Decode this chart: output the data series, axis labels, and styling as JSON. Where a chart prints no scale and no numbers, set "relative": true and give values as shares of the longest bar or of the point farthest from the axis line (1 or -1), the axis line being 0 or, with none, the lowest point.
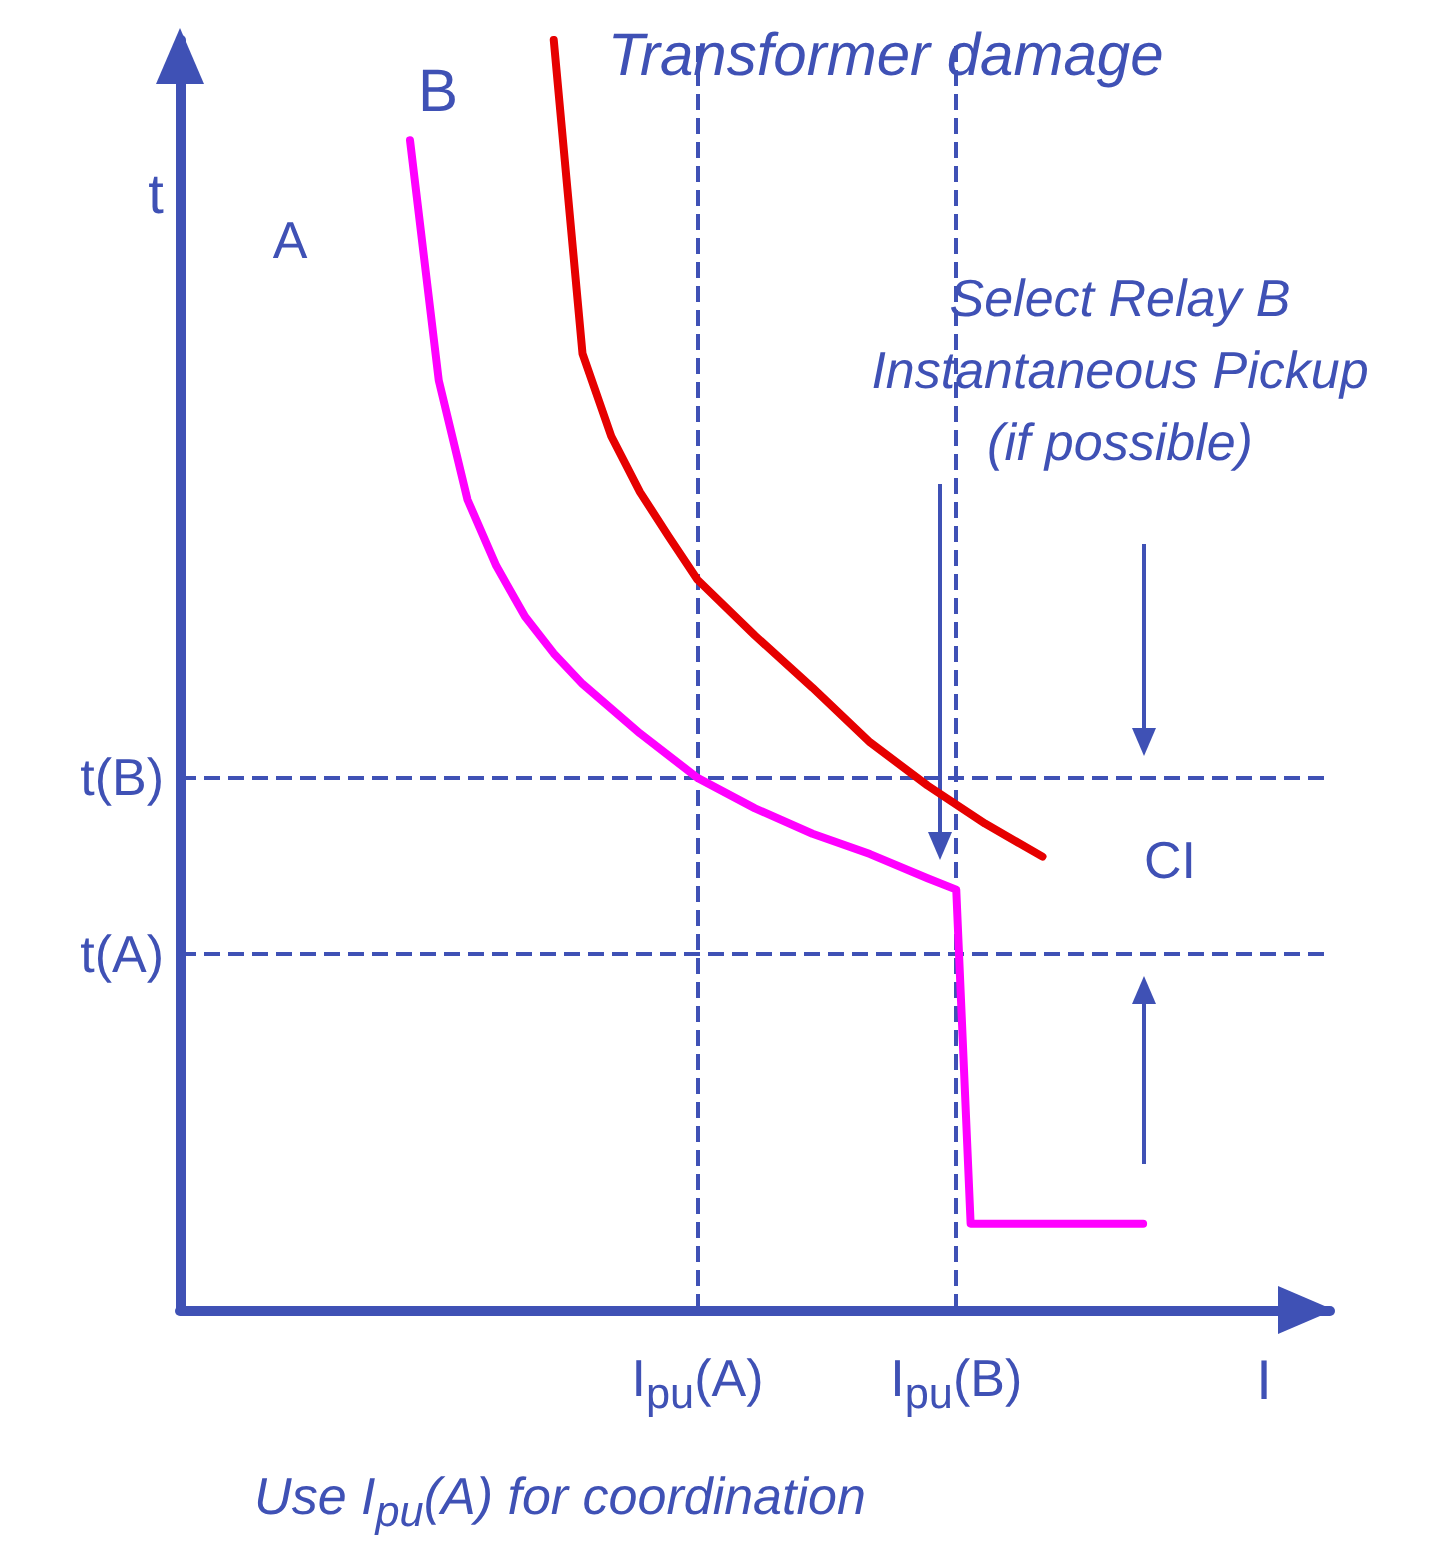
{
  "chart_data": {
    "type": "line",
    "relative": true,
    "xlabel": "I",
    "ylabel": "t",
    "line_style": "solid",
    "marker": "none",
    "grid": false,
    "legend": false,
    "categories": [
      null,
      null,
      null,
      null,
      null,
      null,
      null,
      null,
      null,
      null,
      null,
      null,
      null,
      null,
      null,
      null,
      null,
      null,
      null,
      null,
      null,
      null,
      null,
      null,
      null,
      null,
      null,
      null,
      null,
      null,
      null,
      null,
      null,
      null,
      null,
      null,
      "I$_{pu}$(A)",
      null,
      null,
      null,
      null,
      null,
      null,
      null,
      null,
      null,
      null,
      null,
      null,
      null,
      null,
      null,
      null,
      null,
      "I$_{pu}$(B)",
      null,
      null,
      null,
      null,
      null,
      null,
      null,
      null,
      null,
      null,
      null,
      null,
      null,
      null,
      null,
      null,
      null,
      null,
      null,
      null,
      null,
      null,
      null,
      null,
      null,
      null
    ],
    "series": [
      {
        "name": "Transformer damage",
        "color": "#e60000",
        "values": [
          null,
          null,
          null,
          null,
          null,
          null,
          null,
          null,
          null,
          null,
          null,
          null,
          null,
          null,
          null,
          null,
          null,
          null,
          null,
          null,
          null,
          null,
          null,
          null,
          null,
          null,
          1.0,
          null,
          0.753,
          null,
          0.688,
          null,
          0.644,
          null,
          0.609,
          null,
          0.575,
          null,
          null,
          null,
          0.531,
          null,
          null,
          null,
          0.49,
          null,
          null,
          null,
          0.447,
          null,
          null,
          null,
          0.413,
          null,
          null,
          null,
          0.383,
          null,
          null,
          null,
          0.357,
          null,
          null,
          null,
          null,
          null,
          null,
          null,
          null,
          null,
          null,
          null,
          null,
          null,
          null,
          null,
          null,
          null,
          null,
          null,
          null
        ]
      },
      {
        "name": "B",
        "color": "#ff00ff",
        "values": [
          null,
          null,
          null,
          null,
          null,
          null,
          null,
          null,
          null,
          null,
          null,
          null,
          null,
          null,
          null,
          null,
          0.921,
          null,
          0.732,
          null,
          0.638,
          null,
          0.586,
          null,
          0.546,
          null,
          0.517,
          null,
          0.493,
          null,
          null,
          null,
          0.454,
          null,
          null,
          null,
          0.419,
          null,
          null,
          null,
          0.395,
          null,
          null,
          null,
          0.375,
          null,
          null,
          null,
          0.359,
          null,
          null,
          null,
          0.34,
          null,
          0.331,
          0.068,
          null,
          null,
          null,
          null,
          null,
          null,
          null,
          null,
          null,
          null,
          null,
          0.068,
          null,
          null,
          null,
          null,
          null,
          null,
          null,
          null,
          null,
          null,
          null,
          null,
          null
        ]
      }
    ],
    "ref_lines": [
      {
        "axis": "y",
        "value": 0.422,
        "label": "t(B)",
        "line_style": "dashed",
        "color": "#3f51b5"
      },
      {
        "axis": "y",
        "value": 0.282,
        "label": "t(A)",
        "line_style": "dashed",
        "color": "#3f51b5"
      },
      {
        "axis": "x",
        "value": "I$_{pu}$(A)",
        "line_style": "dashed",
        "color": "#3f51b5"
      },
      {
        "axis": "x",
        "value": "I$_{pu}$(B)",
        "line_style": "dashed",
        "color": "#3f51b5"
      }
    ],
    "annotations": [
      "A",
      "CI",
      "Select Relay B\nInstantaneous Pickup\n(if possible)",
      "Use I$_{pu}$(A) for coordination"
    ]
  }
}
